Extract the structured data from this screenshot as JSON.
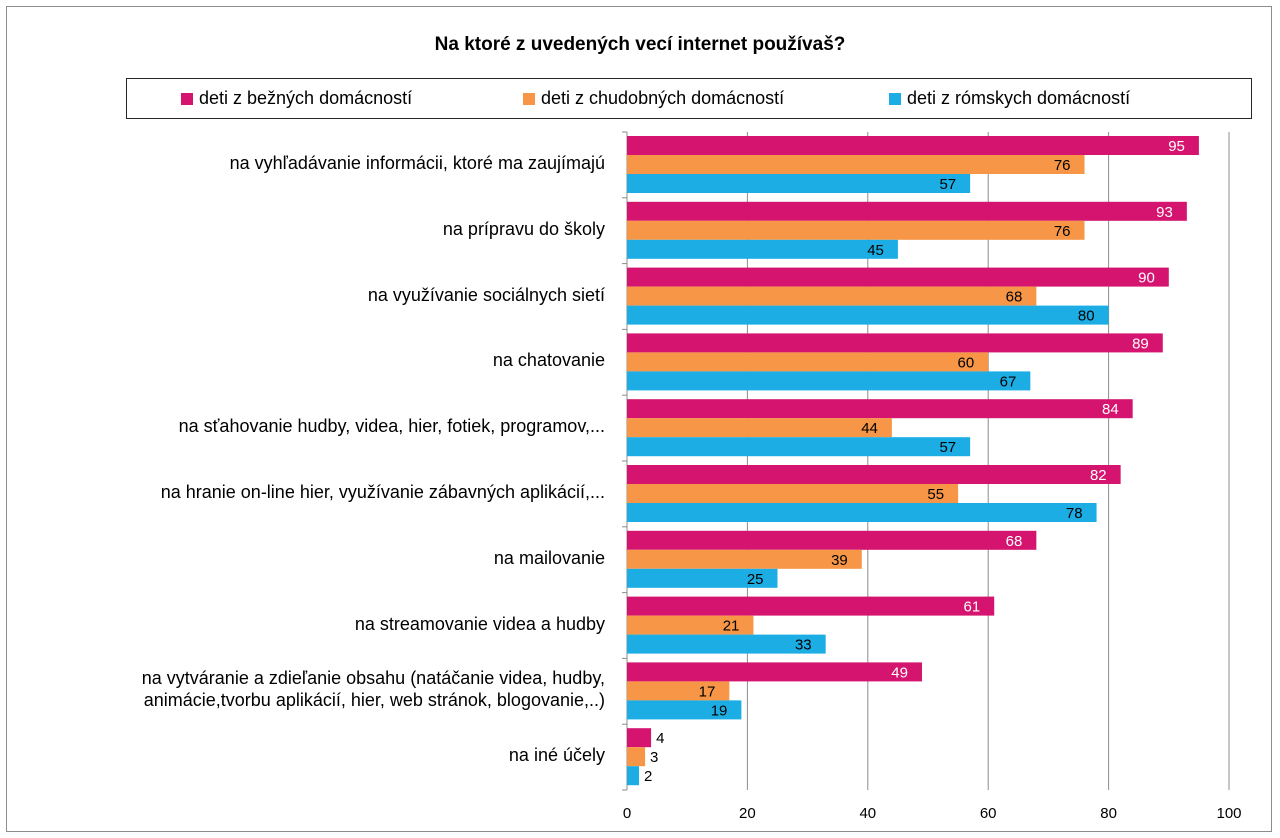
{
  "chart_data": {
    "type": "bar",
    "orientation": "horizontal",
    "title": "Na ktoré z uvedených vecí internet používaš?",
    "categories": [
      [
        "na vyhľadávanie informácii, ktoré ma zaujímajú"
      ],
      [
        "na prípravu do školy"
      ],
      [
        "na využívanie sociálnych sietí"
      ],
      [
        "na chatovanie"
      ],
      [
        "na sťahovanie hudby, videa, hier, fotiek, programov,..."
      ],
      [
        "na hranie on-line hier, využívanie zábavných aplikácií,..."
      ],
      [
        "na mailovanie"
      ],
      [
        "na streamovanie videa a hudby"
      ],
      [
        "na vytváranie a zdieľanie obsahu (natáčanie videa, hudby,",
        "animácie,tvorbu aplikácií, hier, web stránok, blogovanie,..)"
      ],
      [
        "na iné účely"
      ]
    ],
    "series": [
      {
        "name": "deti z bežných domácností",
        "color": "#d4146e",
        "values": [
          95,
          93,
          90,
          89,
          84,
          82,
          68,
          61,
          49,
          4
        ]
      },
      {
        "name": "deti z chudobných domácností",
        "color": "#f79646",
        "values": [
          76,
          76,
          68,
          60,
          44,
          55,
          39,
          21,
          17,
          3
        ]
      },
      {
        "name": "deti z rómskych domácností",
        "color": "#1cade4",
        "values": [
          57,
          45,
          80,
          67,
          57,
          78,
          25,
          33,
          19,
          2
        ]
      }
    ],
    "xlim": [
      0,
      100
    ],
    "xticks": [
      "0",
      "20",
      "40",
      "60",
      "80",
      "100"
    ],
    "grid": true,
    "legend_position": "top"
  }
}
